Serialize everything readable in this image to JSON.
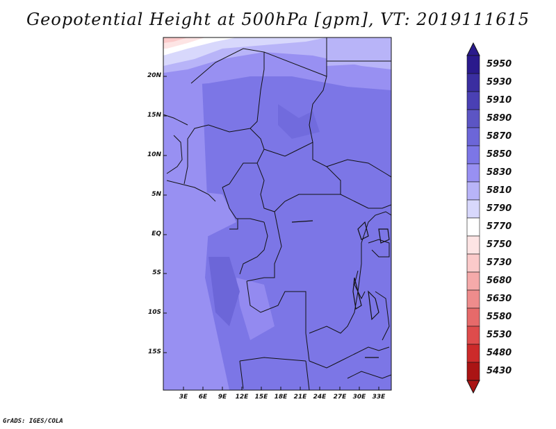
{
  "title": "Geopotential Height at 500hPa [gpm], VT: 2019111615",
  "footer": "GrADS: IGES/COLA",
  "lat_labels": [
    "20N",
    "15N",
    "10N",
    "5N",
    "EQ",
    "5S",
    "10S",
    "15S"
  ],
  "lon_labels": [
    "3E",
    "6E",
    "9E",
    "12E",
    "15E",
    "18E",
    "21E",
    "24E",
    "27E",
    "30E",
    "33E"
  ],
  "colorbar": {
    "levels": [
      "5950",
      "5930",
      "5910",
      "5890",
      "5870",
      "5850",
      "5830",
      "5810",
      "5790",
      "5770",
      "5750",
      "5730",
      "5680",
      "5630",
      "5580",
      "5530",
      "5480",
      "5430"
    ],
    "colors": [
      "#2a1a8c",
      "#3a2ea0",
      "#4a40b4",
      "#5c55c4",
      "#6c66d8",
      "#7c76e6",
      "#9890f2",
      "#b8b4f8",
      "#d8d8fc",
      "#ffffff",
      "#fde4e4",
      "#fbcaca",
      "#f5aaaa",
      "#ee8c8c",
      "#e66a6a",
      "#de4c4c",
      "#cc2a2a",
      "#aa1414"
    ]
  }
}
